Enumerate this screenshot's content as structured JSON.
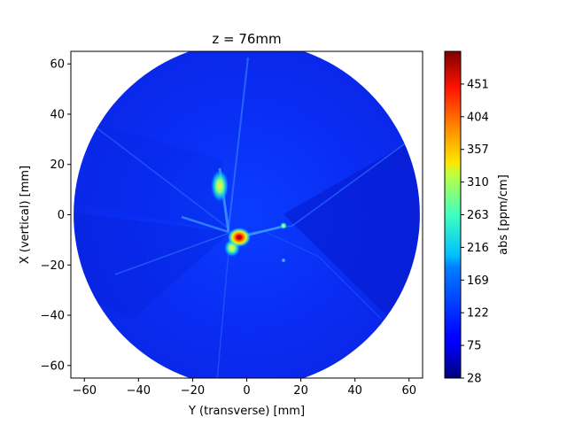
{
  "chart_data": {
    "type": "heatmap",
    "title": "z = 76mm",
    "xlabel": "Y (transverse) [mm]",
    "ylabel": "X (vertical) [mm]",
    "xlim": [
      -65,
      65
    ],
    "ylim": [
      -65,
      65
    ],
    "xticks": [
      -60,
      -40,
      -20,
      0,
      20,
      40,
      60
    ],
    "yticks": [
      -60,
      -40,
      -20,
      0,
      20,
      40,
      60
    ],
    "aperture_radius": 64,
    "colormap": "jet",
    "colorbar": {
      "label": "abs [ppm/cm]",
      "min": 28,
      "max": 498,
      "ticks": [
        28,
        75,
        122,
        169,
        216,
        263,
        310,
        357,
        404,
        451
      ]
    },
    "background_level": 70,
    "features": [
      {
        "name": "central hot spot",
        "x": -3,
        "y": -8,
        "peak": 490
      },
      {
        "name": "upper arm spot",
        "x": -10,
        "y": 12,
        "peak": 280
      },
      {
        "name": "lower arm spot",
        "x": -5,
        "y": -12,
        "peak": 300
      }
    ]
  }
}
